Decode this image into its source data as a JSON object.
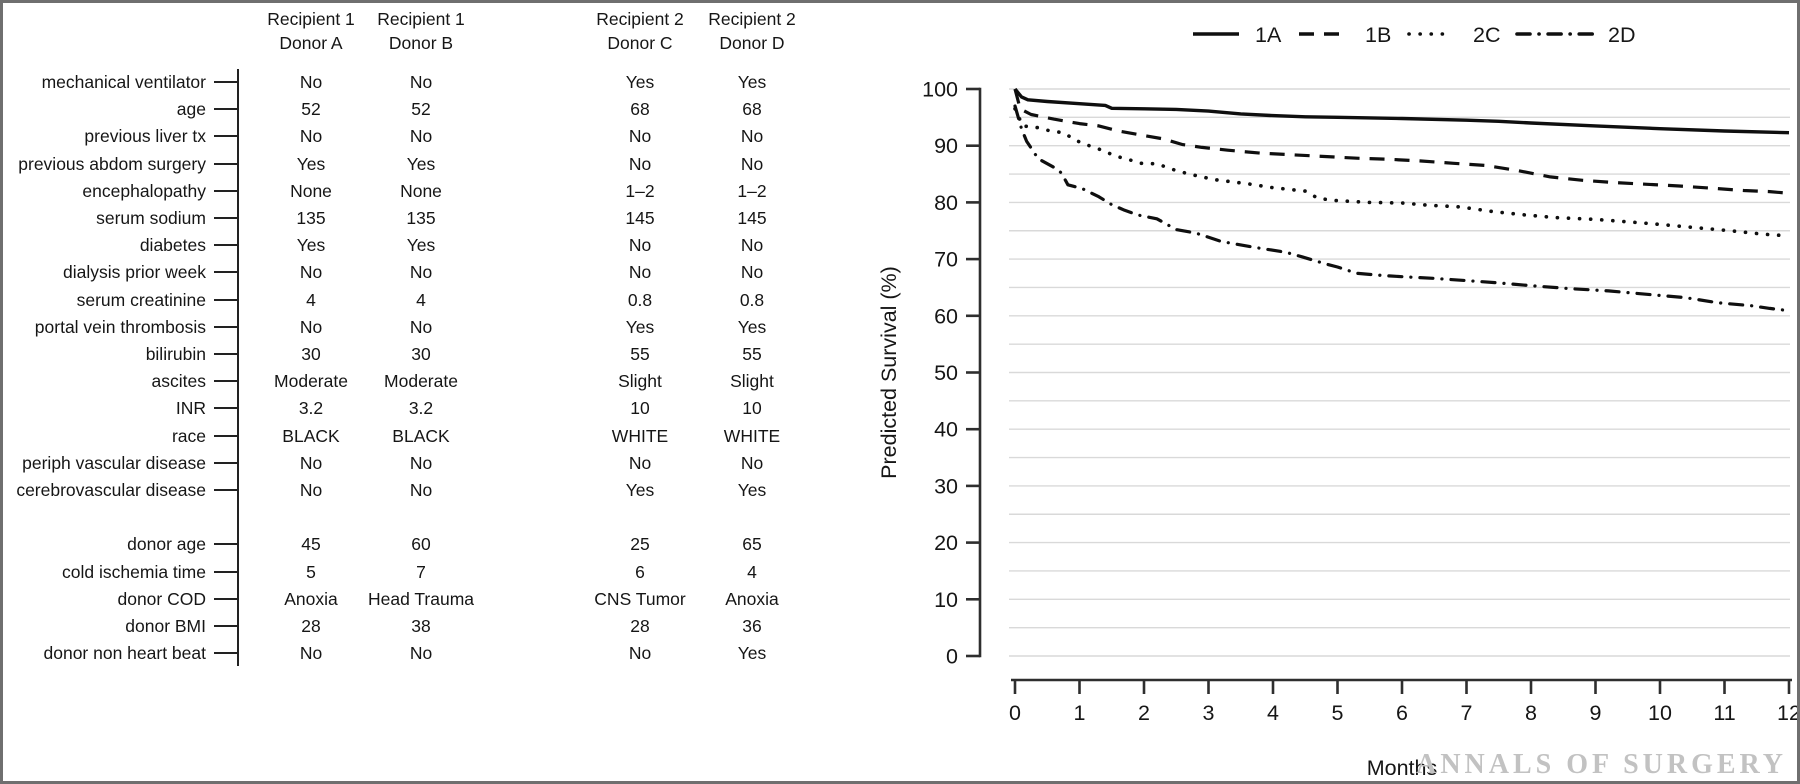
{
  "watermark": "ANNALS OF SURGERY",
  "table": {
    "column_headers": [
      {
        "line1": "Recipient 1",
        "line2": "Donor A"
      },
      {
        "line1": "Recipient 1",
        "line2": "Donor B"
      },
      {
        "line1": "Recipient 2",
        "line2": "Donor C"
      },
      {
        "line1": "Recipient 2",
        "line2": "Donor D"
      }
    ],
    "recipient_rows": [
      {
        "label": "mechanical ventilator",
        "values": [
          "No",
          "No",
          "Yes",
          "Yes"
        ]
      },
      {
        "label": "age",
        "values": [
          "52",
          "52",
          "68",
          "68"
        ]
      },
      {
        "label": "previous liver tx",
        "values": [
          "No",
          "No",
          "No",
          "No"
        ]
      },
      {
        "label": "previous abdom surgery",
        "values": [
          "Yes",
          "Yes",
          "No",
          "No"
        ]
      },
      {
        "label": "encephalopathy",
        "values": [
          "None",
          "None",
          "1–2",
          "1–2"
        ]
      },
      {
        "label": "serum sodium",
        "values": [
          "135",
          "135",
          "145",
          "145"
        ]
      },
      {
        "label": "diabetes",
        "values": [
          "Yes",
          "Yes",
          "No",
          "No"
        ]
      },
      {
        "label": "dialysis prior week",
        "values": [
          "No",
          "No",
          "No",
          "No"
        ]
      },
      {
        "label": "serum creatinine",
        "values": [
          "4",
          "4",
          "0.8",
          "0.8"
        ]
      },
      {
        "label": "portal vein thrombosis",
        "values": [
          "No",
          "No",
          "Yes",
          "Yes"
        ]
      },
      {
        "label": "bilirubin",
        "values": [
          "30",
          "30",
          "55",
          "55"
        ]
      },
      {
        "label": "ascites",
        "values": [
          "Moderate",
          "Moderate",
          "Slight",
          "Slight"
        ]
      },
      {
        "label": "INR",
        "values": [
          "3.2",
          "3.2",
          "10",
          "10"
        ]
      },
      {
        "label": "race",
        "values": [
          "BLACK",
          "BLACK",
          "WHITE",
          "WHITE"
        ]
      },
      {
        "label": "periph vascular disease",
        "values": [
          "No",
          "No",
          "No",
          "No"
        ]
      },
      {
        "label": "cerebrovascular disease",
        "values": [
          "No",
          "No",
          "Yes",
          "Yes"
        ]
      }
    ],
    "donor_rows": [
      {
        "label": "donor age",
        "values": [
          "45",
          "60",
          "25",
          "65"
        ]
      },
      {
        "label": "cold ischemia time",
        "values": [
          "5",
          "7",
          "6",
          "4"
        ]
      },
      {
        "label": "donor COD",
        "values": [
          "Anoxia",
          "Head Trauma",
          "CNS Tumor",
          "Anoxia"
        ]
      },
      {
        "label": "donor BMI",
        "values": [
          "28",
          "38",
          "28",
          "36"
        ]
      },
      {
        "label": "donor non heart beat",
        "values": [
          "No",
          "No",
          "No",
          "Yes"
        ]
      }
    ]
  },
  "chart_data": {
    "type": "line",
    "title": "",
    "xlabel": "Months",
    "ylabel": "Predicted Survival (%)",
    "xlim": [
      0,
      12
    ],
    "ylim": [
      0,
      100
    ],
    "xticks": [
      0,
      1,
      2,
      3,
      4,
      5,
      6,
      7,
      8,
      9,
      10,
      11,
      12
    ],
    "yticks": [
      0,
      10,
      20,
      30,
      40,
      50,
      60,
      70,
      80,
      90,
      100
    ],
    "grid": true,
    "grid_step": 5,
    "legend_position": "top-right",
    "colors": {
      "line": "#0f0f0f",
      "axis": "#2e2e2e",
      "grid": "#d9d9d9",
      "text": "#161616",
      "watermark": "#c2c2c2"
    },
    "series": [
      {
        "name": "1A",
        "style": "solid",
        "points": [
          [
            0,
            100
          ],
          [
            0.1,
            98.6
          ],
          [
            0.2,
            98.1
          ],
          [
            0.5,
            97.8
          ],
          [
            1,
            97.4
          ],
          [
            1.4,
            97.1
          ],
          [
            1.5,
            96.6
          ],
          [
            2,
            96.5
          ],
          [
            2.5,
            96.4
          ],
          [
            3,
            96.1
          ],
          [
            3.5,
            95.6
          ],
          [
            4,
            95.3
          ],
          [
            4.5,
            95.1
          ],
          [
            5,
            95.0
          ],
          [
            6,
            94.8
          ],
          [
            7,
            94.5
          ],
          [
            7.5,
            94.3
          ],
          [
            8,
            94.0
          ],
          [
            9,
            93.5
          ],
          [
            10,
            93.0
          ],
          [
            11,
            92.6
          ],
          [
            12,
            92.3
          ]
        ]
      },
      {
        "name": "1B",
        "style": "dashed",
        "points": [
          [
            0,
            100
          ],
          [
            0.08,
            96.5
          ],
          [
            0.25,
            95.5
          ],
          [
            0.6,
            94.7
          ],
          [
            1,
            93.9
          ],
          [
            1.3,
            93.5
          ],
          [
            1.6,
            92.6
          ],
          [
            2,
            91.8
          ],
          [
            2.3,
            91.2
          ],
          [
            2.6,
            90.2
          ],
          [
            2.9,
            89.7
          ],
          [
            3.3,
            89.2
          ],
          [
            3.8,
            88.7
          ],
          [
            4.3,
            88.4
          ],
          [
            4.8,
            88.1
          ],
          [
            5.3,
            87.8
          ],
          [
            5.8,
            87.6
          ],
          [
            6.3,
            87.3
          ],
          [
            6.8,
            86.9
          ],
          [
            7.3,
            86.5
          ],
          [
            7.8,
            85.6
          ],
          [
            8.3,
            84.5
          ],
          [
            8.8,
            83.9
          ],
          [
            9.3,
            83.5
          ],
          [
            9.8,
            83.2
          ],
          [
            10.3,
            82.9
          ],
          [
            10.8,
            82.5
          ],
          [
            11.3,
            82.1
          ],
          [
            11.7,
            81.9
          ],
          [
            12,
            81.6
          ]
        ]
      },
      {
        "name": "2C",
        "style": "dotted",
        "points": [
          [
            0,
            96.5
          ],
          [
            0.12,
            93.5
          ],
          [
            0.35,
            93.2
          ],
          [
            0.55,
            92.6
          ],
          [
            0.75,
            92.3
          ],
          [
            0.95,
            90.9
          ],
          [
            1.15,
            90.0
          ],
          [
            1.35,
            89.2
          ],
          [
            1.55,
            88.2
          ],
          [
            1.75,
            87.6
          ],
          [
            1.95,
            86.9
          ],
          [
            2.2,
            86.8
          ],
          [
            2.45,
            85.8
          ],
          [
            2.7,
            85.0
          ],
          [
            3.1,
            84.0
          ],
          [
            3.6,
            83.3
          ],
          [
            4.0,
            82.6
          ],
          [
            4.5,
            82.0
          ],
          [
            4.7,
            80.7
          ],
          [
            5.0,
            80.3
          ],
          [
            5.5,
            80.0
          ],
          [
            6.0,
            79.9
          ],
          [
            6.4,
            79.5
          ],
          [
            6.9,
            79.2
          ],
          [
            7.4,
            78.4
          ],
          [
            7.9,
            77.8
          ],
          [
            8.4,
            77.3
          ],
          [
            9.0,
            77.0
          ],
          [
            9.7,
            76.4
          ],
          [
            10.2,
            75.9
          ],
          [
            10.7,
            75.4
          ],
          [
            11.1,
            75.0
          ],
          [
            11.6,
            74.4
          ],
          [
            12,
            74.1
          ]
        ]
      },
      {
        "name": "2D",
        "style": "dashdot",
        "points": [
          [
            0,
            97
          ],
          [
            0.1,
            93
          ],
          [
            0.18,
            90.8
          ],
          [
            0.36,
            87.7
          ],
          [
            0.6,
            86.2
          ],
          [
            0.72,
            85.2
          ],
          [
            0.82,
            83.1
          ],
          [
            1.05,
            82.4
          ],
          [
            1.3,
            81.0
          ],
          [
            1.5,
            79.6
          ],
          [
            1.7,
            78.6
          ],
          [
            1.9,
            77.8
          ],
          [
            2.2,
            77.1
          ],
          [
            2.5,
            75.2
          ],
          [
            2.8,
            74.6
          ],
          [
            3.2,
            73.1
          ],
          [
            3.7,
            72.1
          ],
          [
            4.2,
            71.2
          ],
          [
            4.45,
            70.4
          ],
          [
            4.8,
            69.2
          ],
          [
            5.0,
            68.6
          ],
          [
            5.3,
            67.5
          ],
          [
            5.7,
            67.1
          ],
          [
            6.0,
            66.9
          ],
          [
            6.5,
            66.6
          ],
          [
            7.0,
            66.2
          ],
          [
            7.5,
            65.8
          ],
          [
            8.0,
            65.3
          ],
          [
            8.6,
            64.8
          ],
          [
            9.2,
            64.4
          ],
          [
            9.8,
            63.8
          ],
          [
            10.4,
            63.2
          ],
          [
            10.9,
            62.3
          ],
          [
            11.4,
            61.8
          ],
          [
            11.7,
            61.3
          ],
          [
            12,
            60.9
          ]
        ]
      }
    ]
  }
}
